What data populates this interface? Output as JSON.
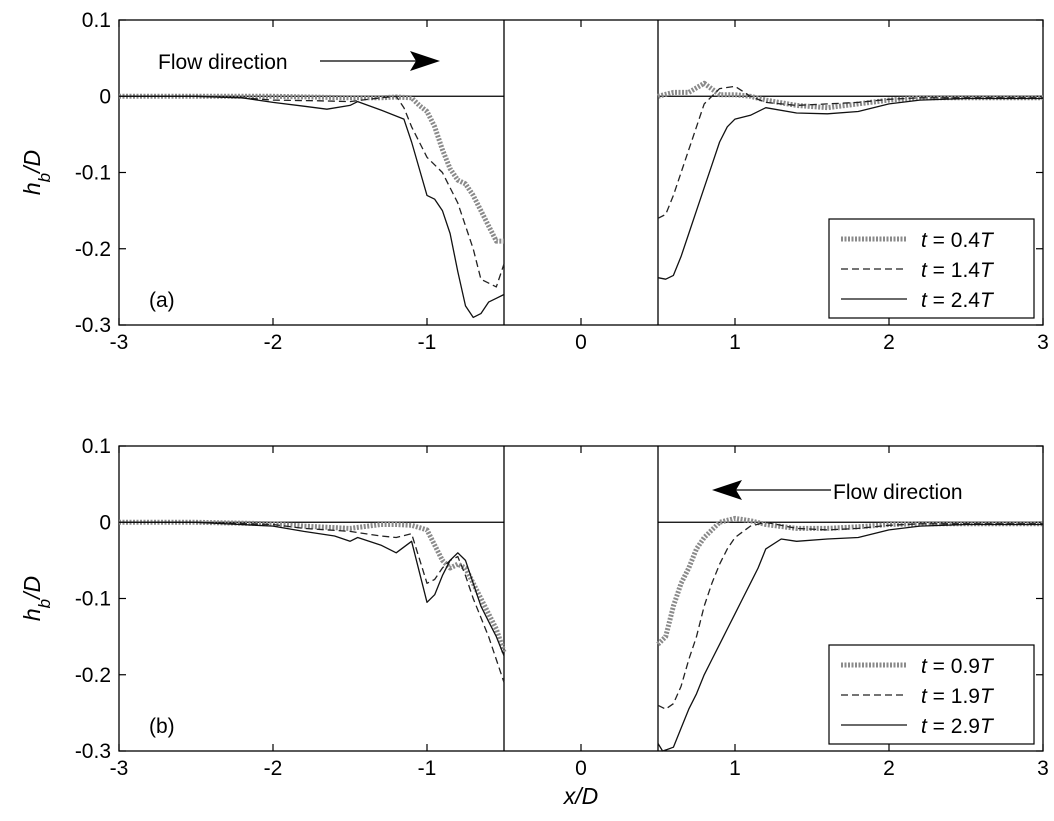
{
  "chart_data": [
    {
      "type": "line",
      "panel_label": "(a)",
      "xlabel": "",
      "ylabel": "h_b/D",
      "xlim": [
        -3,
        3
      ],
      "ylim": [
        -0.3,
        0.1
      ],
      "xticks": [
        "-3",
        "-2",
        "-1",
        "0",
        "1",
        "2",
        "3"
      ],
      "yticks": [
        "0.1",
        "0",
        "-0.1",
        "-0.2",
        "-0.3"
      ],
      "pile": [
        -0.5,
        0.5
      ],
      "legend_position": "bottom-right",
      "annotation": {
        "text": "Flow direction",
        "arrow": "right"
      },
      "series": [
        {
          "name": "t = 0.4T",
          "style": "dotted",
          "left": {
            "x": [
              -3,
              -2.5,
              -2.0,
              -1.5,
              -1.3,
              -1.2,
              -1.1,
              -1.05,
              -1.0,
              -0.95,
              -0.9,
              -0.85,
              -0.8,
              -0.75,
              -0.7,
              -0.65,
              -0.6,
              -0.55,
              -0.5
            ],
            "y": [
              0,
              0,
              0,
              -0.002,
              -0.002,
              -0.001,
              -0.002,
              -0.012,
              -0.02,
              -0.04,
              -0.07,
              -0.095,
              -0.11,
              -0.115,
              -0.13,
              -0.15,
              -0.17,
              -0.19,
              -0.19
            ]
          },
          "right": {
            "x": [
              0.5,
              0.6,
              0.7,
              0.8,
              0.9,
              1.0,
              1.1,
              1.2,
              1.4,
              1.6,
              1.8,
              2.0,
              2.2,
              2.5,
              3.0
            ],
            "y": [
              0,
              0.005,
              0.005,
              0.017,
              0.002,
              0.002,
              0.0,
              -0.005,
              -0.012,
              -0.015,
              -0.01,
              -0.005,
              -0.002,
              -0.002,
              -0.002
            ]
          }
        },
        {
          "name": "t = 1.4T",
          "style": "dashed",
          "left": {
            "x": [
              -3,
              -2.5,
              -2.2,
              -2.0,
              -1.7,
              -1.5,
              -1.3,
              -1.2,
              -1.15,
              -1.1,
              -1.0,
              -0.9,
              -0.8,
              -0.7,
              -0.65,
              -0.6,
              -0.55,
              -0.5
            ],
            "y": [
              0,
              0,
              -0.002,
              -0.005,
              -0.006,
              -0.007,
              -0.002,
              0,
              -0.015,
              -0.04,
              -0.08,
              -0.1,
              -0.14,
              -0.2,
              -0.24,
              -0.245,
              -0.25,
              -0.22
            ]
          },
          "right": {
            "x": [
              0.5,
              0.55,
              0.6,
              0.65,
              0.7,
              0.75,
              0.8,
              0.9,
              1.0,
              1.1,
              1.2,
              1.4,
              1.6,
              1.8,
              2.0,
              2.2,
              2.5,
              3.0
            ],
            "y": [
              -0.16,
              -0.155,
              -0.13,
              -0.1,
              -0.07,
              -0.04,
              -0.01,
              0.01,
              0.013,
              0.0,
              -0.008,
              -0.012,
              -0.01,
              -0.008,
              -0.004,
              -0.002,
              -0.002,
              -0.002
            ]
          }
        },
        {
          "name": "t = 2.4T",
          "style": "solid",
          "left": {
            "x": [
              -3,
              -2.5,
              -2.2,
              -2.0,
              -1.8,
              -1.65,
              -1.5,
              -1.45,
              -1.3,
              -1.15,
              -1.1,
              -1.0,
              -0.95,
              -0.9,
              -0.85,
              -0.8,
              -0.75,
              -0.7,
              -0.65,
              -0.6,
              -0.55,
              -0.5
            ],
            "y": [
              0,
              0,
              -0.002,
              -0.008,
              -0.013,
              -0.017,
              -0.012,
              -0.007,
              -0.018,
              -0.03,
              -0.06,
              -0.13,
              -0.135,
              -0.15,
              -0.18,
              -0.23,
              -0.275,
              -0.29,
              -0.285,
              -0.27,
              -0.265,
              -0.26
            ]
          },
          "right": {
            "x": [
              0.5,
              0.55,
              0.6,
              0.65,
              0.7,
              0.75,
              0.8,
              0.85,
              0.9,
              0.95,
              1.0,
              1.1,
              1.2,
              1.4,
              1.6,
              1.8,
              2.0,
              2.2,
              2.5,
              3.0
            ],
            "y": [
              -0.238,
              -0.24,
              -0.235,
              -0.21,
              -0.18,
              -0.15,
              -0.12,
              -0.09,
              -0.06,
              -0.04,
              -0.03,
              -0.025,
              -0.015,
              -0.022,
              -0.023,
              -0.02,
              -0.01,
              -0.005,
              -0.003,
              -0.003
            ]
          }
        }
      ]
    },
    {
      "type": "line",
      "panel_label": "(b)",
      "xlabel": "x/D",
      "ylabel": "h_b/D",
      "xlim": [
        -3,
        3
      ],
      "ylim": [
        -0.3,
        0.1
      ],
      "xticks": [
        "-3",
        "-2",
        "-1",
        "0",
        "1",
        "2",
        "3"
      ],
      "yticks": [
        "0.1",
        "0",
        "-0.1",
        "-0.2",
        "-0.3"
      ],
      "pile": [
        -0.5,
        0.5
      ],
      "legend_position": "bottom-right",
      "annotation": {
        "text": "Flow direction",
        "arrow": "left"
      },
      "series": [
        {
          "name": "t = 0.9T",
          "style": "dotted",
          "left": {
            "x": [
              -3,
              -2.5,
              -2.0,
              -1.8,
              -1.5,
              -1.3,
              -1.2,
              -1.1,
              -1.0,
              -0.95,
              -0.9,
              -0.85,
              -0.8,
              -0.75,
              -0.7,
              -0.65,
              -0.6,
              -0.55,
              -0.5
            ],
            "y": [
              0,
              0,
              -0.002,
              -0.005,
              -0.008,
              -0.003,
              -0.003,
              -0.004,
              -0.01,
              -0.03,
              -0.05,
              -0.06,
              -0.055,
              -0.06,
              -0.08,
              -0.1,
              -0.12,
              -0.14,
              -0.17
            ]
          },
          "right": {
            "x": [
              0.5,
              0.55,
              0.6,
              0.65,
              0.7,
              0.75,
              0.8,
              0.9,
              1.0,
              1.1,
              1.2,
              1.4,
              1.6,
              1.8,
              2.0,
              2.2,
              2.5,
              3.0
            ],
            "y": [
              -0.16,
              -0.15,
              -0.11,
              -0.08,
              -0.06,
              -0.035,
              -0.02,
              0.0,
              0.005,
              0.002,
              -0.003,
              -0.008,
              -0.008,
              -0.006,
              -0.003,
              -0.002,
              -0.002,
              -0.002
            ]
          }
        },
        {
          "name": "t = 1.9T",
          "style": "dashed",
          "left": {
            "x": [
              -3,
              -2.5,
              -2.0,
              -1.8,
              -1.5,
              -1.3,
              -1.2,
              -1.1,
              -1.0,
              -0.95,
              -0.9,
              -0.85,
              -0.8,
              -0.75,
              -0.7,
              -0.6,
              -0.55,
              -0.5
            ],
            "y": [
              0,
              0,
              -0.003,
              -0.008,
              -0.012,
              -0.018,
              -0.02,
              -0.015,
              -0.08,
              -0.075,
              -0.06,
              -0.05,
              -0.045,
              -0.07,
              -0.1,
              -0.15,
              -0.18,
              -0.21
            ]
          },
          "right": {
            "x": [
              0.5,
              0.55,
              0.6,
              0.65,
              0.7,
              0.75,
              0.8,
              0.85,
              0.9,
              0.95,
              1.0,
              1.1,
              1.2,
              1.4,
              1.6,
              1.8,
              2.0,
              2.2,
              2.5,
              3.0
            ],
            "y": [
              -0.24,
              -0.245,
              -0.238,
              -0.215,
              -0.18,
              -0.15,
              -0.11,
              -0.08,
              -0.055,
              -0.035,
              -0.02,
              -0.005,
              0.0,
              -0.008,
              -0.01,
              -0.008,
              -0.004,
              -0.002,
              -0.002,
              -0.002
            ]
          }
        },
        {
          "name": "t = 2.9T",
          "style": "solid",
          "left": {
            "x": [
              -3,
              -2.5,
              -2.0,
              -1.8,
              -1.6,
              -1.5,
              -1.45,
              -1.3,
              -1.2,
              -1.1,
              -1.0,
              -0.95,
              -0.9,
              -0.85,
              -0.8,
              -0.75,
              -0.7,
              -0.65,
              -0.6,
              -0.55,
              -0.5
            ],
            "y": [
              0,
              0,
              -0.005,
              -0.012,
              -0.018,
              -0.025,
              -0.02,
              -0.03,
              -0.04,
              -0.025,
              -0.105,
              -0.095,
              -0.07,
              -0.05,
              -0.04,
              -0.05,
              -0.08,
              -0.11,
              -0.13,
              -0.15,
              -0.175
            ]
          },
          "right": {
            "x": [
              0.5,
              0.53,
              0.56,
              0.6,
              0.65,
              0.7,
              0.75,
              0.8,
              0.85,
              0.9,
              0.95,
              1.0,
              1.05,
              1.1,
              1.15,
              1.2,
              1.3,
              1.4,
              1.6,
              1.8,
              2.0,
              2.2,
              2.5,
              3.0
            ],
            "y": [
              -0.29,
              -0.3,
              -0.298,
              -0.295,
              -0.27,
              -0.245,
              -0.225,
              -0.2,
              -0.18,
              -0.16,
              -0.14,
              -0.12,
              -0.1,
              -0.08,
              -0.06,
              -0.035,
              -0.022,
              -0.025,
              -0.022,
              -0.02,
              -0.01,
              -0.005,
              -0.003,
              -0.003
            ]
          }
        }
      ]
    }
  ]
}
